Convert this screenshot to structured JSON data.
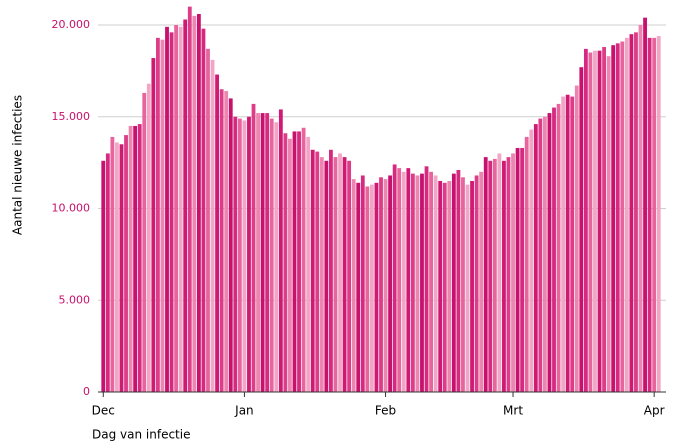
{
  "chart_data": {
    "type": "bar",
    "y_label": "Aantal nieuwe infecties",
    "x_label": "Dag van infectie",
    "categories": [
      "Dec",
      null,
      null,
      null,
      null,
      null,
      null,
      null,
      null,
      null,
      null,
      null,
      null,
      null,
      null,
      null,
      null,
      null,
      null,
      null,
      null,
      null,
      null,
      null,
      null,
      null,
      null,
      null,
      null,
      null,
      null,
      "Jan",
      null,
      null,
      null,
      null,
      null,
      null,
      null,
      null,
      null,
      null,
      null,
      null,
      null,
      null,
      null,
      null,
      null,
      null,
      null,
      null,
      null,
      null,
      null,
      null,
      null,
      null,
      null,
      null,
      null,
      null,
      "Feb",
      null,
      null,
      null,
      null,
      null,
      null,
      null,
      null,
      null,
      null,
      null,
      null,
      null,
      null,
      null,
      null,
      null,
      null,
      null,
      null,
      null,
      null,
      null,
      null,
      null,
      null,
      null,
      "Mrt",
      null,
      null,
      null,
      null,
      null,
      null,
      null,
      null,
      null,
      null,
      null,
      null,
      null,
      null,
      null,
      null,
      null,
      null,
      null,
      null,
      null,
      null,
      null,
      null,
      null,
      null,
      null,
      null,
      null,
      null,
      "Apr",
      null
    ],
    "values": [
      12600,
      13000,
      13900,
      13600,
      13500,
      14000,
      14500,
      14500,
      14600,
      16300,
      16800,
      18200,
      19300,
      19200,
      19900,
      19600,
      20000,
      19900,
      20300,
      21000,
      20500,
      20600,
      19800,
      18700,
      18100,
      17300,
      16500,
      16400,
      16000,
      15000,
      14900,
      14800,
      15000,
      15700,
      15200,
      15200,
      15200,
      14900,
      14700,
      15400,
      14100,
      13800,
      14200,
      14200,
      14400,
      13900,
      13200,
      13100,
      12800,
      12600,
      13200,
      12800,
      13000,
      12800,
      12600,
      11600,
      11400,
      11800,
      11200,
      11300,
      11400,
      11700,
      11600,
      11800,
      12400,
      12200,
      12000,
      12200,
      11900,
      11800,
      11900,
      12300,
      12000,
      11800,
      11500,
      11400,
      11500,
      11900,
      12100,
      11700,
      11300,
      11500,
      11800,
      12000,
      12800,
      12600,
      12700,
      13000,
      12600,
      12800,
      13000,
      13300,
      13300,
      13900,
      14300,
      14600,
      14900,
      15000,
      15200,
      15500,
      15700,
      16100,
      16200,
      16100,
      16700,
      17700,
      18700,
      18500,
      18600,
      18600,
      18800,
      18300,
      18900,
      19000,
      19100,
      19300,
      19500,
      19600,
      20000,
      20400,
      19300,
      19300,
      19400
    ],
    "colors": [
      "#c8106e",
      "#d62a80",
      "#e8649c",
      "#f2a6c6",
      "#cf1a74",
      "#dd3d88",
      "#ec85b0"
    ],
    "ylim": [
      0,
      20000
    ],
    "yticks": [
      0,
      {
        "value": 5000,
        "label": "5.000"
      },
      {
        "value": 10000,
        "label": "10.000"
      },
      {
        "value": 15000,
        "label": "15.000"
      },
      {
        "value": 20000,
        "label": "20.000"
      }
    ],
    "grid": true
  }
}
